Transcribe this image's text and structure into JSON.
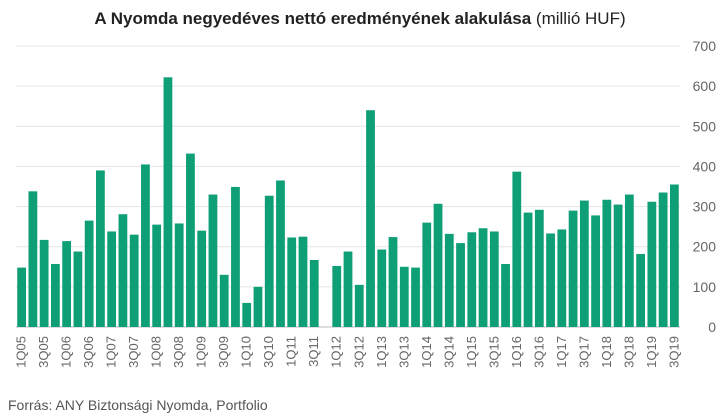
{
  "chart_data": {
    "type": "bar",
    "title": "A Nyomda negyedéves nettó eredményének alakulása",
    "title_unit": "(millió HUF)",
    "source": "Forrás: ANY Biztonsági Nyomda, Portfolio",
    "ylim": [
      0,
      700
    ],
    "yticks": [
      0,
      100,
      200,
      300,
      400,
      500,
      600,
      700
    ],
    "y_axis_position": "right",
    "grid": true,
    "bar_color": "#0e9f77",
    "categories": [
      "1Q05",
      "2Q05",
      "3Q05",
      "4Q05",
      "1Q06",
      "2Q06",
      "3Q06",
      "4Q06",
      "1Q07",
      "2Q07",
      "3Q07",
      "4Q07",
      "1Q08",
      "2Q08",
      "3Q08",
      "4Q08",
      "1Q09",
      "2Q09",
      "3Q09",
      "4Q09",
      "1Q10",
      "2Q10",
      "3Q10",
      "4Q10",
      "1Q11",
      "2Q11",
      "3Q11",
      "4Q11",
      "1Q12",
      "2Q12",
      "3Q12",
      "4Q12",
      "1Q13",
      "2Q13",
      "3Q13",
      "4Q13",
      "1Q14",
      "2Q14",
      "3Q14",
      "4Q14",
      "1Q15",
      "2Q15",
      "3Q15",
      "4Q15",
      "1Q16",
      "2Q16",
      "3Q16",
      "4Q16",
      "1Q17",
      "2Q17",
      "3Q17",
      "4Q17",
      "1Q18",
      "2Q18",
      "3Q18",
      "4Q18",
      "1Q19",
      "2Q19",
      "3Q19"
    ],
    "xtick_labels": [
      "1Q05",
      "3Q05",
      "1Q06",
      "3Q06",
      "1Q07",
      "3Q07",
      "1Q08",
      "3Q08",
      "1Q09",
      "3Q09",
      "1Q10",
      "3Q10",
      "1Q11",
      "3Q11",
      "1Q12",
      "3Q12",
      "1Q13",
      "3Q13",
      "1Q14",
      "3Q14",
      "1Q15",
      "3Q15",
      "1Q16",
      "3Q16",
      "1Q17",
      "3Q17",
      "1Q18",
      "3Q18",
      "1Q19",
      "3Q19"
    ],
    "values": [
      148,
      338,
      217,
      157,
      214,
      188,
      265,
      390,
      238,
      281,
      230,
      405,
      255,
      622,
      258,
      432,
      240,
      330,
      130,
      349,
      60,
      100,
      327,
      365,
      223,
      225,
      167,
      0,
      152,
      188,
      105,
      540,
      193,
      224,
      150,
      148,
      260,
      307,
      232,
      209,
      236,
      246,
      238,
      157,
      387,
      285,
      292,
      233,
      243,
      290,
      315,
      278,
      317,
      305,
      330,
      182,
      312,
      335,
      355
    ]
  }
}
